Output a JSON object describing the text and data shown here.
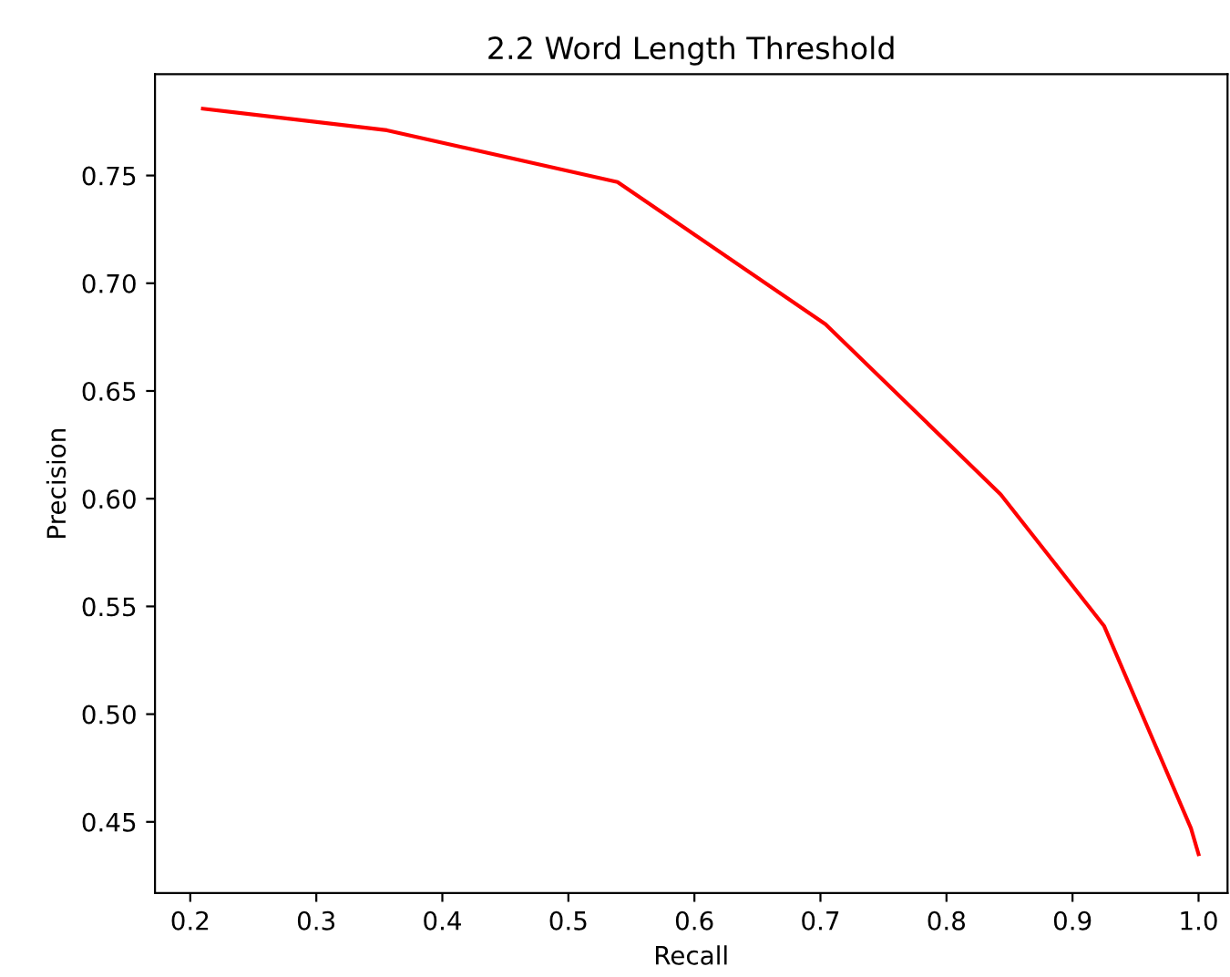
{
  "chart_data": {
    "type": "line",
    "title": "2.2 Word Length Threshold",
    "xlabel": "Recall",
    "ylabel": "Precision",
    "x": [
      0.21,
      0.356,
      0.539,
      0.704,
      0.843,
      0.925,
      0.994,
      1.0
    ],
    "series": [
      {
        "color": "#ff0000",
        "values": [
          0.781,
          0.771,
          0.747,
          0.681,
          0.602,
          0.541,
          0.447,
          0.435
        ]
      }
    ],
    "xlim": [
      0.172,
      1.023
    ],
    "ylim": [
      0.417,
      0.797
    ],
    "xticks": [
      {
        "value": 0.2,
        "label": "0.2"
      },
      {
        "value": 0.3,
        "label": "0.3"
      },
      {
        "value": 0.4,
        "label": "0.4"
      },
      {
        "value": 0.5,
        "label": "0.5"
      },
      {
        "value": 0.6,
        "label": "0.6"
      },
      {
        "value": 0.7,
        "label": "0.7"
      },
      {
        "value": 0.8,
        "label": "0.8"
      },
      {
        "value": 0.9,
        "label": "0.9"
      },
      {
        "value": 1.0,
        "label": "1.0"
      }
    ],
    "yticks": [
      {
        "value": 0.45,
        "label": "0.45"
      },
      {
        "value": 0.5,
        "label": "0.50"
      },
      {
        "value": 0.55,
        "label": "0.55"
      },
      {
        "value": 0.6,
        "label": "0.60"
      },
      {
        "value": 0.65,
        "label": "0.65"
      },
      {
        "value": 0.7,
        "label": "0.70"
      },
      {
        "value": 0.75,
        "label": "0.75"
      }
    ],
    "grid": false
  }
}
